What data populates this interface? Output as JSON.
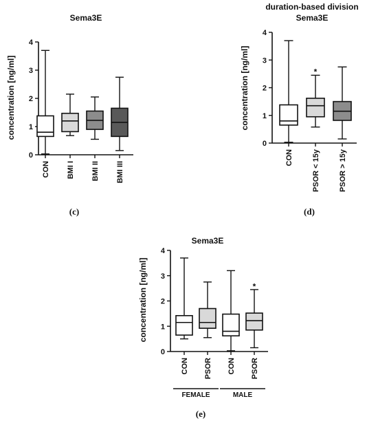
{
  "panels": [
    {
      "label": "(c)"
    },
    {
      "label": "(d)"
    },
    {
      "label": "(e)"
    }
  ],
  "chart_data": [
    {
      "type": "box",
      "title": "Sema3E",
      "ylabel": "concentration [ng/ml]",
      "ylim": [
        0,
        4
      ],
      "yticks": [
        0,
        1,
        2,
        3,
        4
      ],
      "categories": [
        "CON",
        "BMI I",
        "BMI II",
        "BMI III"
      ],
      "boxes": [
        {
          "min": 0.03,
          "q1": 0.65,
          "median": 0.8,
          "q3": 1.38,
          "max": 3.7,
          "fill": "#ffffff"
        },
        {
          "min": 0.68,
          "q1": 0.82,
          "median": 1.2,
          "q3": 1.47,
          "max": 2.15,
          "fill": "#d9d9d9"
        },
        {
          "min": 0.55,
          "q1": 0.9,
          "median": 1.22,
          "q3": 1.55,
          "max": 2.05,
          "fill": "#8c8c8c"
        },
        {
          "min": 0.15,
          "q1": 0.65,
          "median": 1.15,
          "q3": 1.65,
          "max": 2.75,
          "fill": "#595959"
        }
      ],
      "annotations": []
    },
    {
      "type": "box",
      "title_lines": [
        "duration-based division",
        "Sema3E"
      ],
      "ylabel": "concentration [ng/ml]",
      "ylim": [
        0,
        4
      ],
      "yticks": [
        0,
        1,
        2,
        3,
        4
      ],
      "categories": [
        "CON",
        "PSOR < 15y",
        "PSOR > 15y"
      ],
      "boxes": [
        {
          "min": 0.03,
          "q1": 0.65,
          "median": 0.8,
          "q3": 1.38,
          "max": 3.7,
          "fill": "#ffffff"
        },
        {
          "min": 0.58,
          "q1": 0.95,
          "median": 1.35,
          "q3": 1.62,
          "max": 2.45,
          "fill": "#d9d9d9"
        },
        {
          "min": 0.15,
          "q1": 0.82,
          "median": 1.15,
          "q3": 1.5,
          "max": 2.75,
          "fill": "#8c8c8c"
        }
      ],
      "annotations": [
        {
          "category": "PSOR < 15y",
          "y": 2.62,
          "text": "*"
        }
      ]
    },
    {
      "type": "box",
      "title": "Sema3E",
      "ylabel": "concentration [ng/ml]",
      "ylim": [
        0,
        4
      ],
      "yticks": [
        0,
        1,
        2,
        3,
        4
      ],
      "categories": [
        "CON",
        "PSOR",
        "CON",
        "PSOR"
      ],
      "groups": [
        {
          "name": "FEMALE",
          "categories": [
            0,
            1
          ]
        },
        {
          "name": "MALE",
          "categories": [
            2,
            3
          ]
        }
      ],
      "boxes": [
        {
          "min": 0.5,
          "q1": 0.65,
          "median": 1.15,
          "q3": 1.42,
          "max": 3.7,
          "fill": "#ffffff"
        },
        {
          "min": 0.55,
          "q1": 0.92,
          "median": 1.15,
          "q3": 1.7,
          "max": 2.75,
          "fill": "#d9d9d9"
        },
        {
          "min": 0.03,
          "q1": 0.62,
          "median": 0.8,
          "q3": 1.48,
          "max": 3.2,
          "fill": "#ffffff"
        },
        {
          "min": 0.15,
          "q1": 0.85,
          "median": 1.22,
          "q3": 1.52,
          "max": 2.45,
          "fill": "#d9d9d9"
        }
      ],
      "annotations": [
        {
          "category_index": 3,
          "y": 2.62,
          "text": "*"
        }
      ]
    }
  ]
}
